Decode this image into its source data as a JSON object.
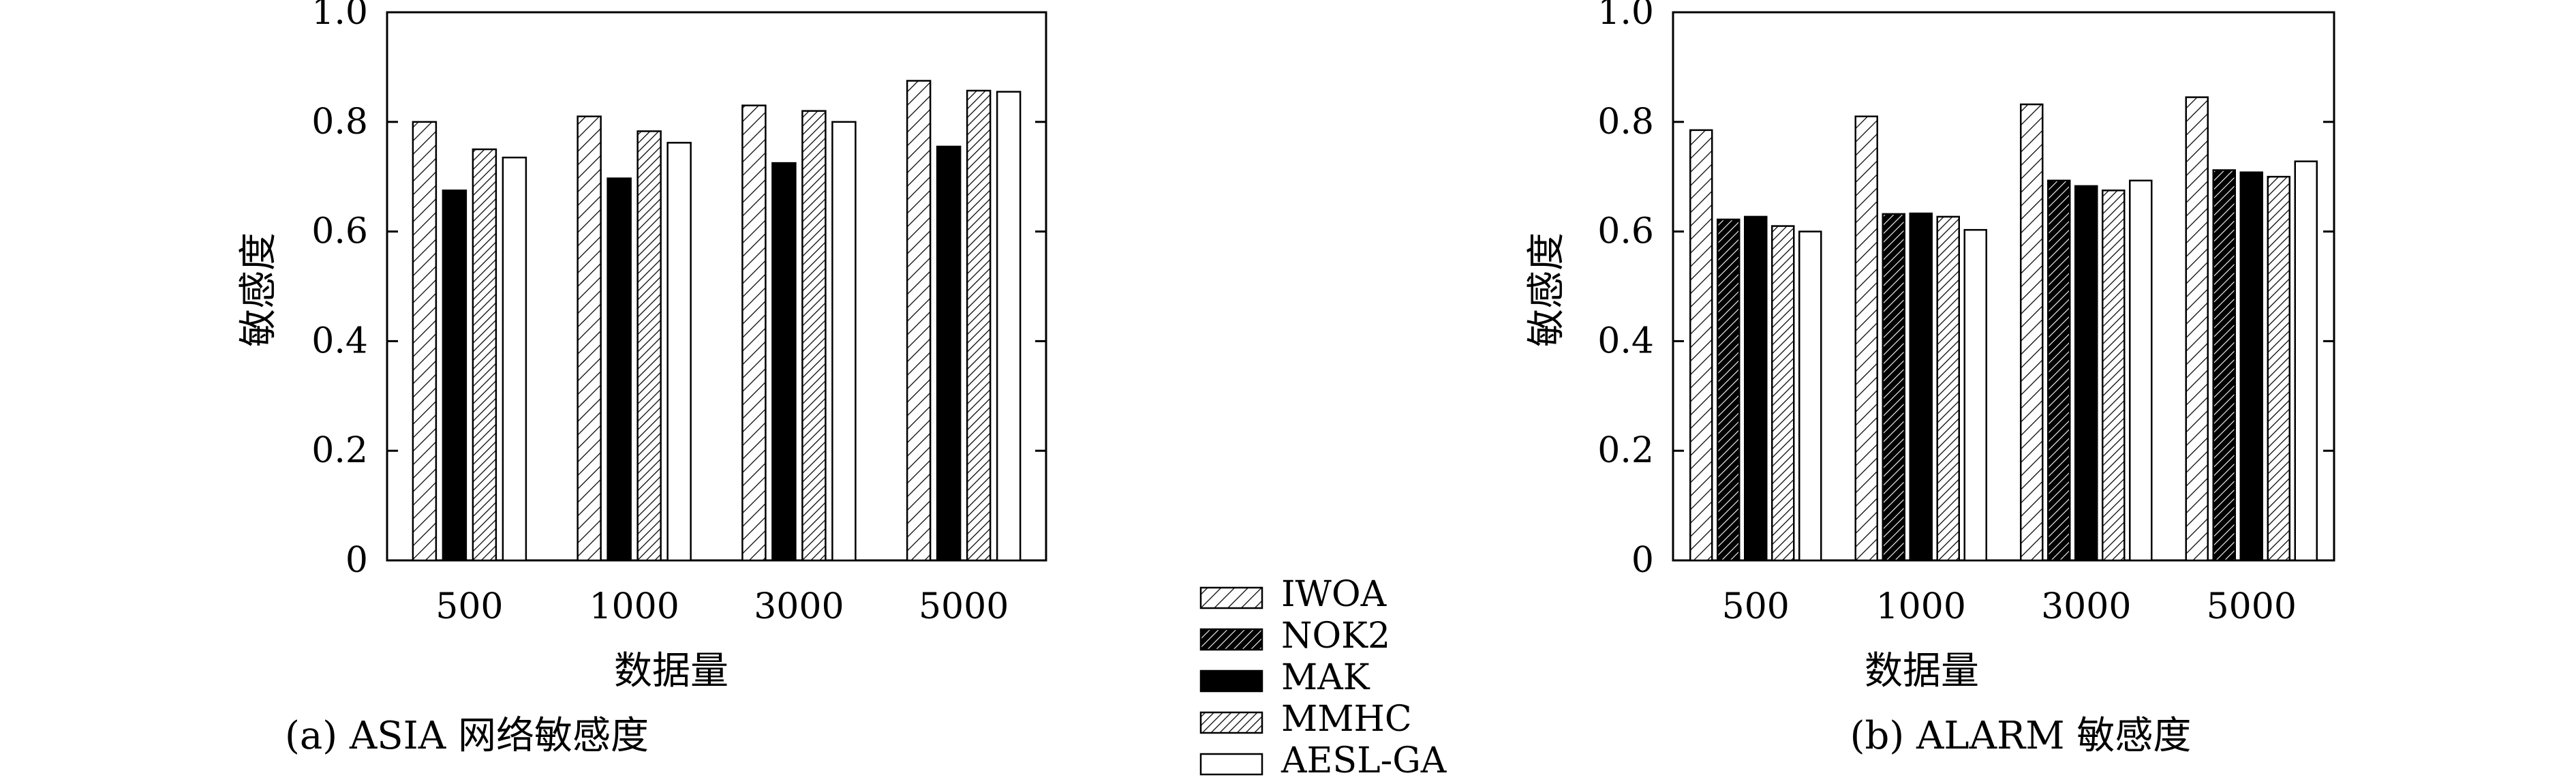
{
  "chart_data": [
    {
      "type": "bar",
      "caption": "(a) ASIA 网络敏感度",
      "xlabel": "数据量",
      "ylabel": "敏感度",
      "ylim": [
        0,
        1.0
      ],
      "yticks": [
        "0",
        "0.2",
        "0.4",
        "0.6",
        "0.8",
        "1.0"
      ],
      "categories": [
        "500",
        "1000",
        "3000",
        "5000"
      ],
      "series": [
        {
          "name": "IWOA",
          "values": [
            0.8,
            0.81,
            0.83,
            0.875
          ]
        },
        {
          "name": "MAK",
          "values": [
            0.675,
            0.697,
            0.725,
            0.755
          ]
        },
        {
          "name": "MMHC",
          "values": [
            0.75,
            0.783,
            0.82,
            0.857
          ]
        },
        {
          "name": "AESL-GA",
          "values": [
            0.735,
            0.762,
            0.8,
            0.855
          ]
        }
      ]
    },
    {
      "type": "bar",
      "caption": "(b) ALARM 敏感度",
      "xlabel": "数据量",
      "ylabel": "敏感度",
      "ylim": [
        0,
        1.0
      ],
      "yticks": [
        "0",
        "0.2",
        "0.4",
        "0.6",
        "0.8",
        "1.0"
      ],
      "categories": [
        "500",
        "1000",
        "3000",
        "5000"
      ],
      "series": [
        {
          "name": "IWOA",
          "values": [
            0.785,
            0.81,
            0.832,
            0.845
          ]
        },
        {
          "name": "NOK2",
          "values": [
            0.622,
            0.632,
            0.693,
            0.712
          ]
        },
        {
          "name": "MAK",
          "values": [
            0.627,
            0.633,
            0.683,
            0.708
          ]
        },
        {
          "name": "MMHC",
          "values": [
            0.61,
            0.627,
            0.675,
            0.7
          ]
        },
        {
          "name": "AESL-GA",
          "values": [
            0.6,
            0.603,
            0.693,
            0.728
          ]
        }
      ]
    }
  ],
  "legend": {
    "items": [
      {
        "name": "IWOA",
        "style": "hatch-light"
      },
      {
        "name": "NOK2",
        "style": "hatch-dark"
      },
      {
        "name": "MAK",
        "style": "solid-black"
      },
      {
        "name": "MMHC",
        "style": "hatch-dense"
      },
      {
        "name": "AESL-GA",
        "style": "white"
      }
    ]
  },
  "colors": {
    "ink": "#000000",
    "background": "#ffffff"
  }
}
